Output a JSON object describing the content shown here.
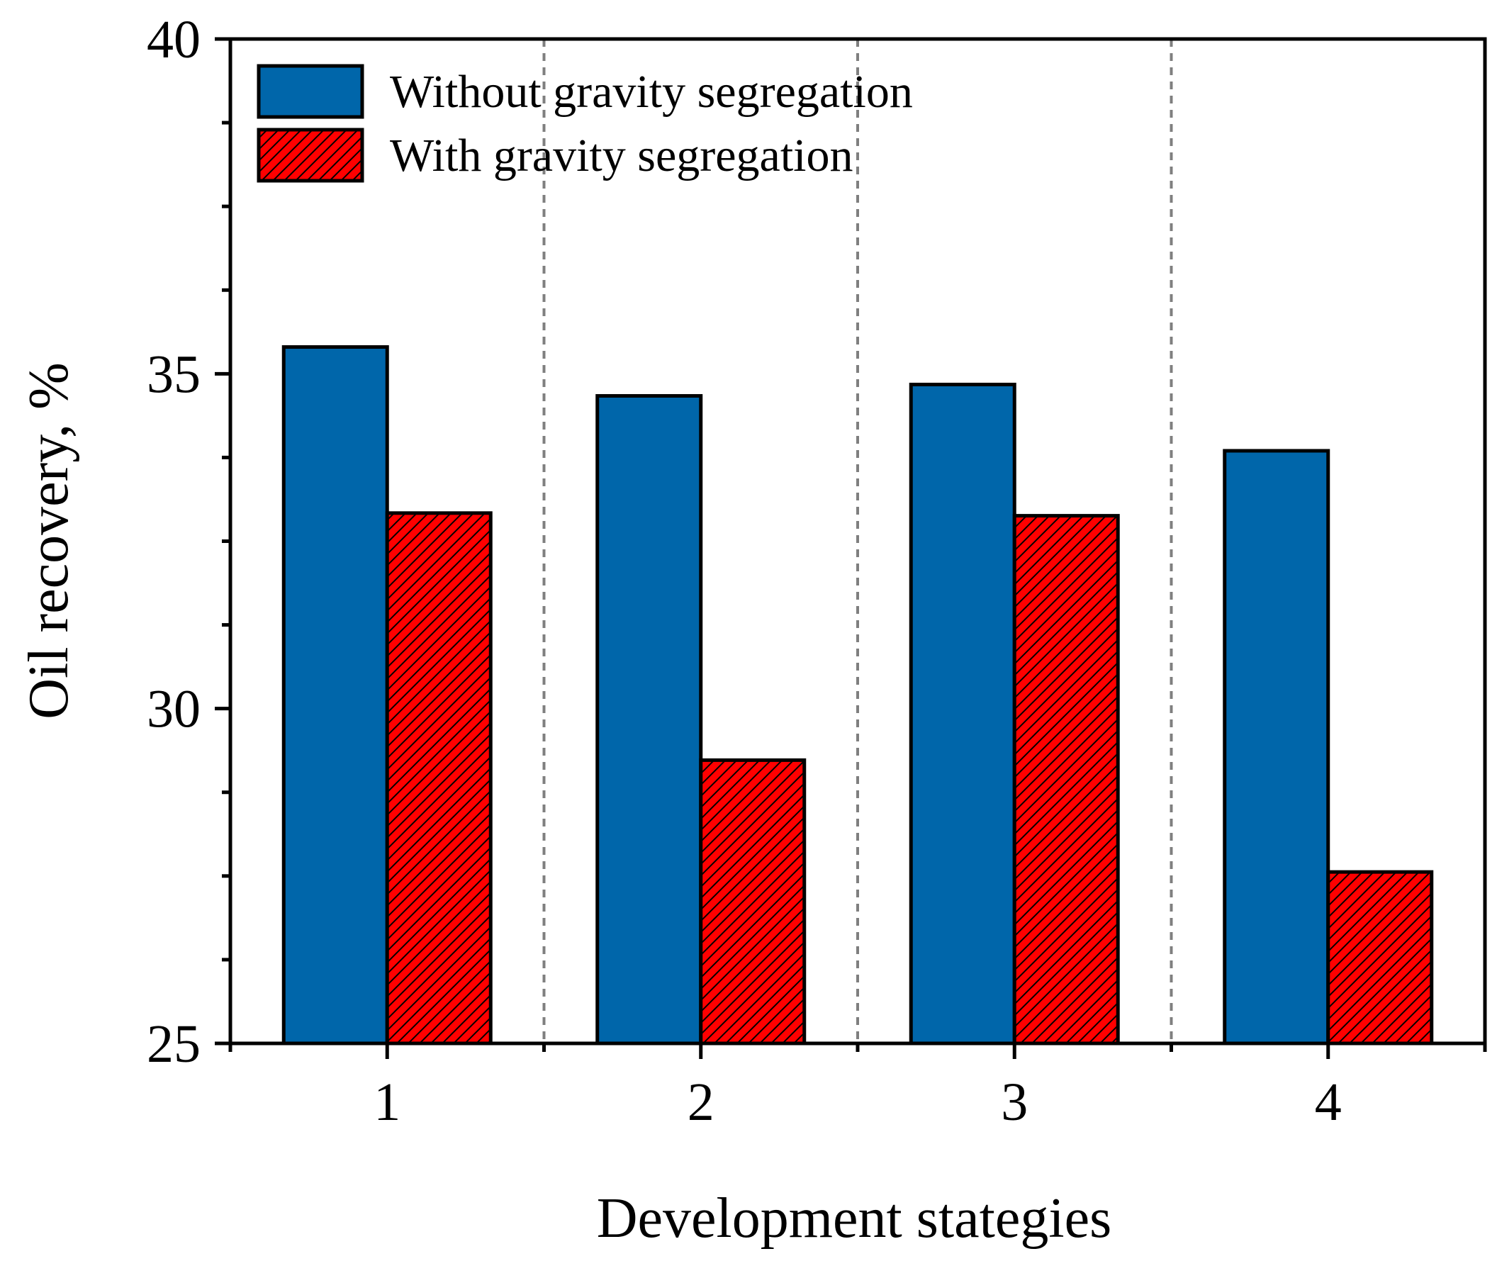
{
  "chart_data": {
    "type": "bar",
    "title": "",
    "xlabel": "Development stategies",
    "ylabel": "Oil recovery, %",
    "categories": [
      "1",
      "2",
      "3",
      "4"
    ],
    "series": [
      {
        "name": "Without gravity segregation",
        "color": "#0066AA",
        "pattern": "solid",
        "values": [
          35.4,
          34.67,
          34.84,
          33.85
        ]
      },
      {
        "name": "With gravity segregation",
        "color": "#FF0000",
        "pattern": "hatched",
        "values": [
          32.92,
          29.23,
          32.88,
          27.56
        ]
      }
    ],
    "ylim": [
      25,
      40
    ],
    "yticks": [
      25,
      30,
      35,
      40
    ],
    "ytick_labels": [
      "25",
      "30",
      "35",
      "40"
    ],
    "grid": "dashed vertical separators between categories",
    "legend_position": "top-left"
  }
}
